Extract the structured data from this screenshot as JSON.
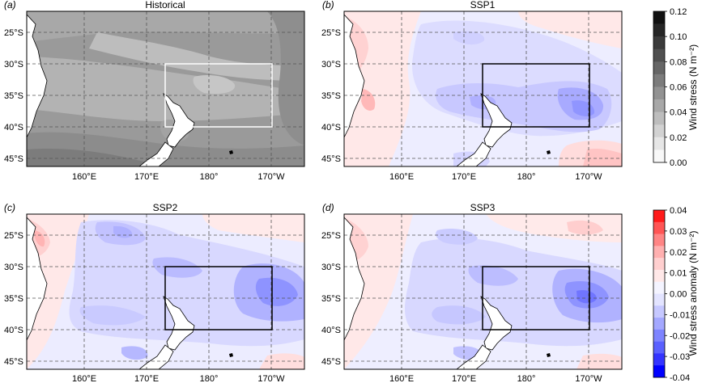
{
  "panels": [
    {
      "tag": "(a)",
      "title": "Historical",
      "scheme": "gray",
      "box_color": "#ffffff"
    },
    {
      "tag": "(b)",
      "title": "SSP1",
      "scheme": "anom1",
      "box_color": "#000000"
    },
    {
      "tag": "(c)",
      "title": "SSP2",
      "scheme": "anom2",
      "box_color": "#000000"
    },
    {
      "tag": "(d)",
      "title": "SSP3",
      "scheme": "anom3",
      "box_color": "#000000"
    }
  ],
  "lat_labels": [
    "25°S",
    "30°S",
    "35°S",
    "40°S",
    "45°S"
  ],
  "lon_labels": [
    "160°E",
    "170°E",
    "180°",
    "170°W"
  ],
  "colorbar_top": {
    "title": "Wind stress (N m⁻²)",
    "ticks": [
      "0.12",
      "0.10",
      "0.08",
      "0.06",
      "0.04",
      "0.02",
      "0.00"
    ],
    "colors": [
      "#111111",
      "#262626",
      "#3b3b3b",
      "#505050",
      "#666666",
      "#7c7c7c",
      "#929292",
      "#a8a8a8",
      "#bdbdbd",
      "#d2d2d2",
      "#e6e6e6",
      "#f8f8f8"
    ]
  },
  "colorbar_bottom": {
    "title": "Wind stress anomaly (N m⁻²)",
    "ticks": [
      "0.04",
      "0.03",
      "0.02",
      "0.01",
      "0.00",
      "-0.01",
      "-0.02",
      "-0.03",
      "-0.04"
    ],
    "colors": [
      "#ff1a1a",
      "#ff5555",
      "#ff8585",
      "#ffb0b0",
      "#ffcfcf",
      "#ffe8e8",
      "#f4f4ff",
      "#e3e4ff",
      "#c6c8ff",
      "#a4a8ff",
      "#7e84ff",
      "#5a60ff",
      "#3434ff",
      "#0000ff"
    ]
  },
  "colors": {
    "land": "#ffffff",
    "coast": "#000000",
    "grid": "#555555"
  }
}
